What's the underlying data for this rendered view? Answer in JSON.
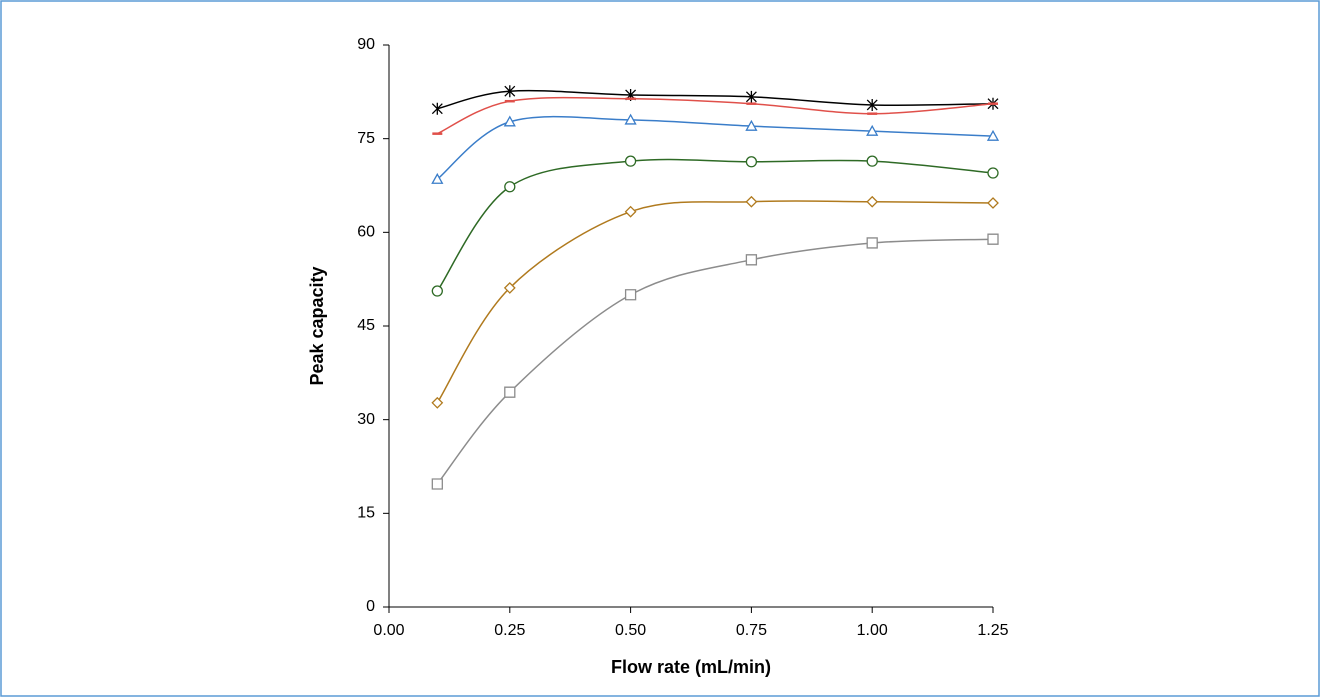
{
  "chart_data": {
    "type": "scatter-smooth",
    "x_label": "Flow rate (mL/min)",
    "y_label": "Peak capacity",
    "x": [
      0.1,
      0.25,
      0.5,
      0.75,
      1.0,
      1.25
    ],
    "series": [
      {
        "color": "#000000",
        "marker": "star",
        "values": [
          79.8,
          82.6,
          82.0,
          81.7,
          80.4,
          80.6
        ]
      },
      {
        "color": "#e0504a",
        "marker": "dash",
        "values": [
          75.8,
          81.0,
          81.4,
          80.6,
          79.0,
          80.6
        ]
      },
      {
        "color": "#3a7dc9",
        "marker": "triangle",
        "values": [
          68.5,
          77.7,
          78.0,
          77.0,
          76.2,
          75.4
        ]
      },
      {
        "color": "#2e6a25",
        "marker": "circle",
        "values": [
          50.6,
          67.3,
          71.4,
          71.3,
          71.4,
          69.5
        ]
      },
      {
        "color": "#b07a1e",
        "marker": "diamond",
        "values": [
          32.7,
          51.1,
          63.3,
          64.9,
          64.9,
          64.7
        ]
      },
      {
        "color": "#8c8c8c",
        "marker": "square",
        "values": [
          19.7,
          34.4,
          50.0,
          55.6,
          58.3,
          58.9
        ]
      }
    ],
    "xlim": [
      0,
      1.25
    ],
    "xticks": [
      {
        "value": 0,
        "label": "0.00"
      },
      {
        "value": 0.25,
        "label": "0.25"
      },
      {
        "value": 0.5,
        "label": "0.50"
      },
      {
        "value": 0.75,
        "label": "0.75"
      },
      {
        "value": 1,
        "label": "1.00"
      },
      {
        "value": 1.25,
        "label": "1.25"
      }
    ],
    "ylim": [
      0,
      90
    ],
    "yticks": [
      0,
      15,
      30,
      45,
      60,
      75,
      90
    ]
  }
}
